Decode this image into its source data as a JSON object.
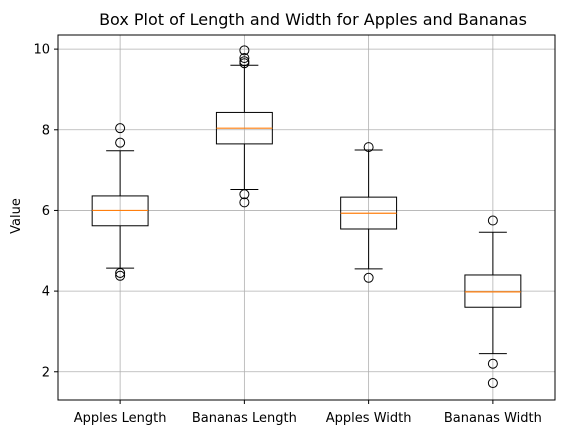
{
  "chart_data": {
    "type": "box",
    "title": "Box Plot of Length and Width for Apples and Bananas",
    "xlabel": "",
    "ylabel": "Value",
    "ylim": [
      1.3,
      10.35
    ],
    "yticks": [
      2,
      4,
      6,
      8,
      10
    ],
    "grid": true,
    "categories": [
      "Apples Length",
      "Bananas Length",
      "Apples Width",
      "Bananas Width"
    ],
    "boxes": [
      {
        "category": "Apples Length",
        "whisker_low": 4.57,
        "q1": 5.62,
        "median": 6.0,
        "q3": 6.36,
        "whisker_high": 7.48,
        "outliers": [
          4.38,
          4.45,
          7.68,
          8.04
        ]
      },
      {
        "category": "Bananas Length",
        "whisker_low": 6.52,
        "q1": 7.65,
        "median": 8.04,
        "q3": 8.43,
        "whisker_high": 9.6,
        "outliers": [
          6.2,
          6.4,
          9.65,
          9.7,
          9.78,
          9.97
        ]
      },
      {
        "category": "Apples Width",
        "whisker_low": 4.55,
        "q1": 5.54,
        "median": 5.93,
        "q3": 6.33,
        "whisker_high": 7.5,
        "outliers": [
          4.33,
          7.57
        ]
      },
      {
        "category": "Bananas Width",
        "whisker_low": 2.45,
        "q1": 3.6,
        "median": 3.98,
        "q3": 4.4,
        "whisker_high": 5.46,
        "outliers": [
          1.72,
          2.2,
          5.75
        ]
      }
    ],
    "colors": {
      "box": "#000000",
      "median": "#ff7f0e",
      "grid": "#b0b0b0"
    }
  }
}
